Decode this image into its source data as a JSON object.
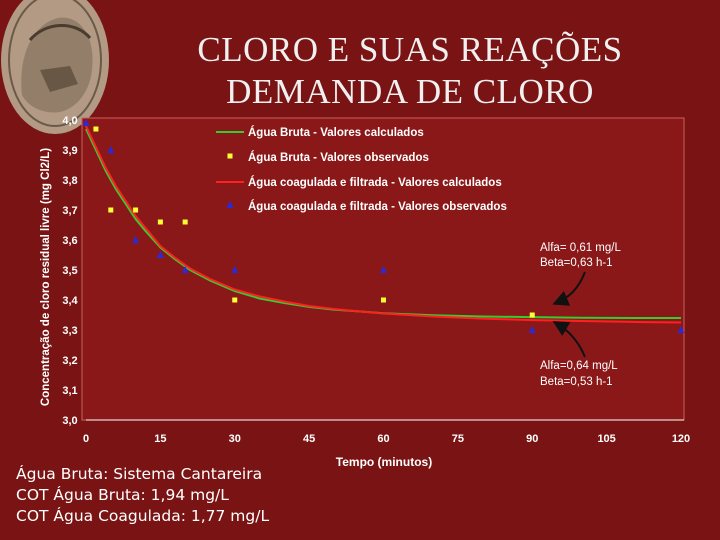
{
  "slide": {
    "title_line1": "CLORO E SUAS REAÇÕES",
    "title_line2": "DEMANDA DE CLORO",
    "notes": [
      "Água Bruta: Sistema Cantareira",
      "COT Água Bruta: 1,94 mg/L",
      "COT Água Coagulada: 1,77 mg/L"
    ]
  },
  "colors": {
    "background": "#7a1414",
    "plot_area": "#8b1818",
    "green_line": "#33cc33",
    "red_line": "#ff2020",
    "yellow_marker": "#ffff33",
    "blue_marker": "#2a2ad8",
    "text": "#ffffff"
  },
  "chart_data": {
    "type": "scatter",
    "title": "",
    "xlabel": "Tempo (minutos)",
    "ylabel": "Concentração de cloro residual livre (mg Cl2/L)",
    "xlim": [
      0,
      120
    ],
    "ylim": [
      3.0,
      4.0
    ],
    "x_ticks": [
      0,
      15,
      30,
      45,
      60,
      75,
      90,
      105,
      120
    ],
    "y_ticks": [
      3.0,
      3.1,
      3.2,
      3.3,
      3.4,
      3.5,
      3.6,
      3.7,
      3.8,
      3.9,
      4.0
    ],
    "y_tick_labels": [
      "3,0",
      "3,1",
      "3,2",
      "3,3",
      "3,4",
      "3,5",
      "3,6",
      "3,7",
      "3,8",
      "3,9",
      "4,0"
    ],
    "grid": false,
    "legend_position": "top",
    "series": [
      {
        "name": "Água Bruta - Valores calculados",
        "kind": "line",
        "color": "#33cc33",
        "x": [
          0,
          2,
          4,
          6,
          8,
          10,
          12,
          15,
          18,
          21,
          25,
          30,
          35,
          40,
          45,
          50,
          55,
          60,
          70,
          80,
          90,
          100,
          110,
          120
        ],
        "y": [
          3.97,
          3.9,
          3.83,
          3.77,
          3.72,
          3.67,
          3.63,
          3.575,
          3.535,
          3.5,
          3.465,
          3.43,
          3.405,
          3.39,
          3.377,
          3.368,
          3.362,
          3.356,
          3.349,
          3.345,
          3.343,
          3.341,
          3.34,
          3.34
        ]
      },
      {
        "name": "Água Bruta - Valores observados",
        "kind": "marker",
        "marker": "square",
        "color": "#ffff33",
        "x": [
          2,
          5,
          10,
          15,
          20,
          30,
          60,
          90
        ],
        "y": [
          3.97,
          3.7,
          3.7,
          3.66,
          3.66,
          3.4,
          3.4,
          3.35
        ]
      },
      {
        "name": "Água coagulada e filtrada - Valores calculados",
        "kind": "line",
        "color": "#ff2020",
        "x": [
          0,
          2,
          4,
          6,
          8,
          10,
          12,
          15,
          18,
          21,
          25,
          30,
          35,
          40,
          45,
          50,
          55,
          60,
          70,
          80,
          90,
          100,
          110,
          120
        ],
        "y": [
          3.98,
          3.91,
          3.84,
          3.78,
          3.73,
          3.68,
          3.64,
          3.58,
          3.54,
          3.505,
          3.47,
          3.435,
          3.412,
          3.395,
          3.38,
          3.37,
          3.362,
          3.355,
          3.345,
          3.338,
          3.333,
          3.33,
          3.327,
          3.325
        ]
      },
      {
        "name": "Água coagulada e filtrada - Valores observados",
        "kind": "marker",
        "marker": "triangle",
        "color": "#2a2ad8",
        "x": [
          0,
          5,
          10,
          15,
          20,
          30,
          60,
          90,
          120
        ],
        "y": [
          3.99,
          3.9,
          3.6,
          3.55,
          3.5,
          3.5,
          3.5,
          3.3,
          3.3
        ]
      }
    ],
    "annotations": [
      {
        "line1": "Alfa= 0,61 mg/L",
        "line2": "Beta=0,63 h-1"
      },
      {
        "line1": "Alfa=0,64 mg/L",
        "line2": "Beta=0,53 h-1"
      }
    ]
  }
}
